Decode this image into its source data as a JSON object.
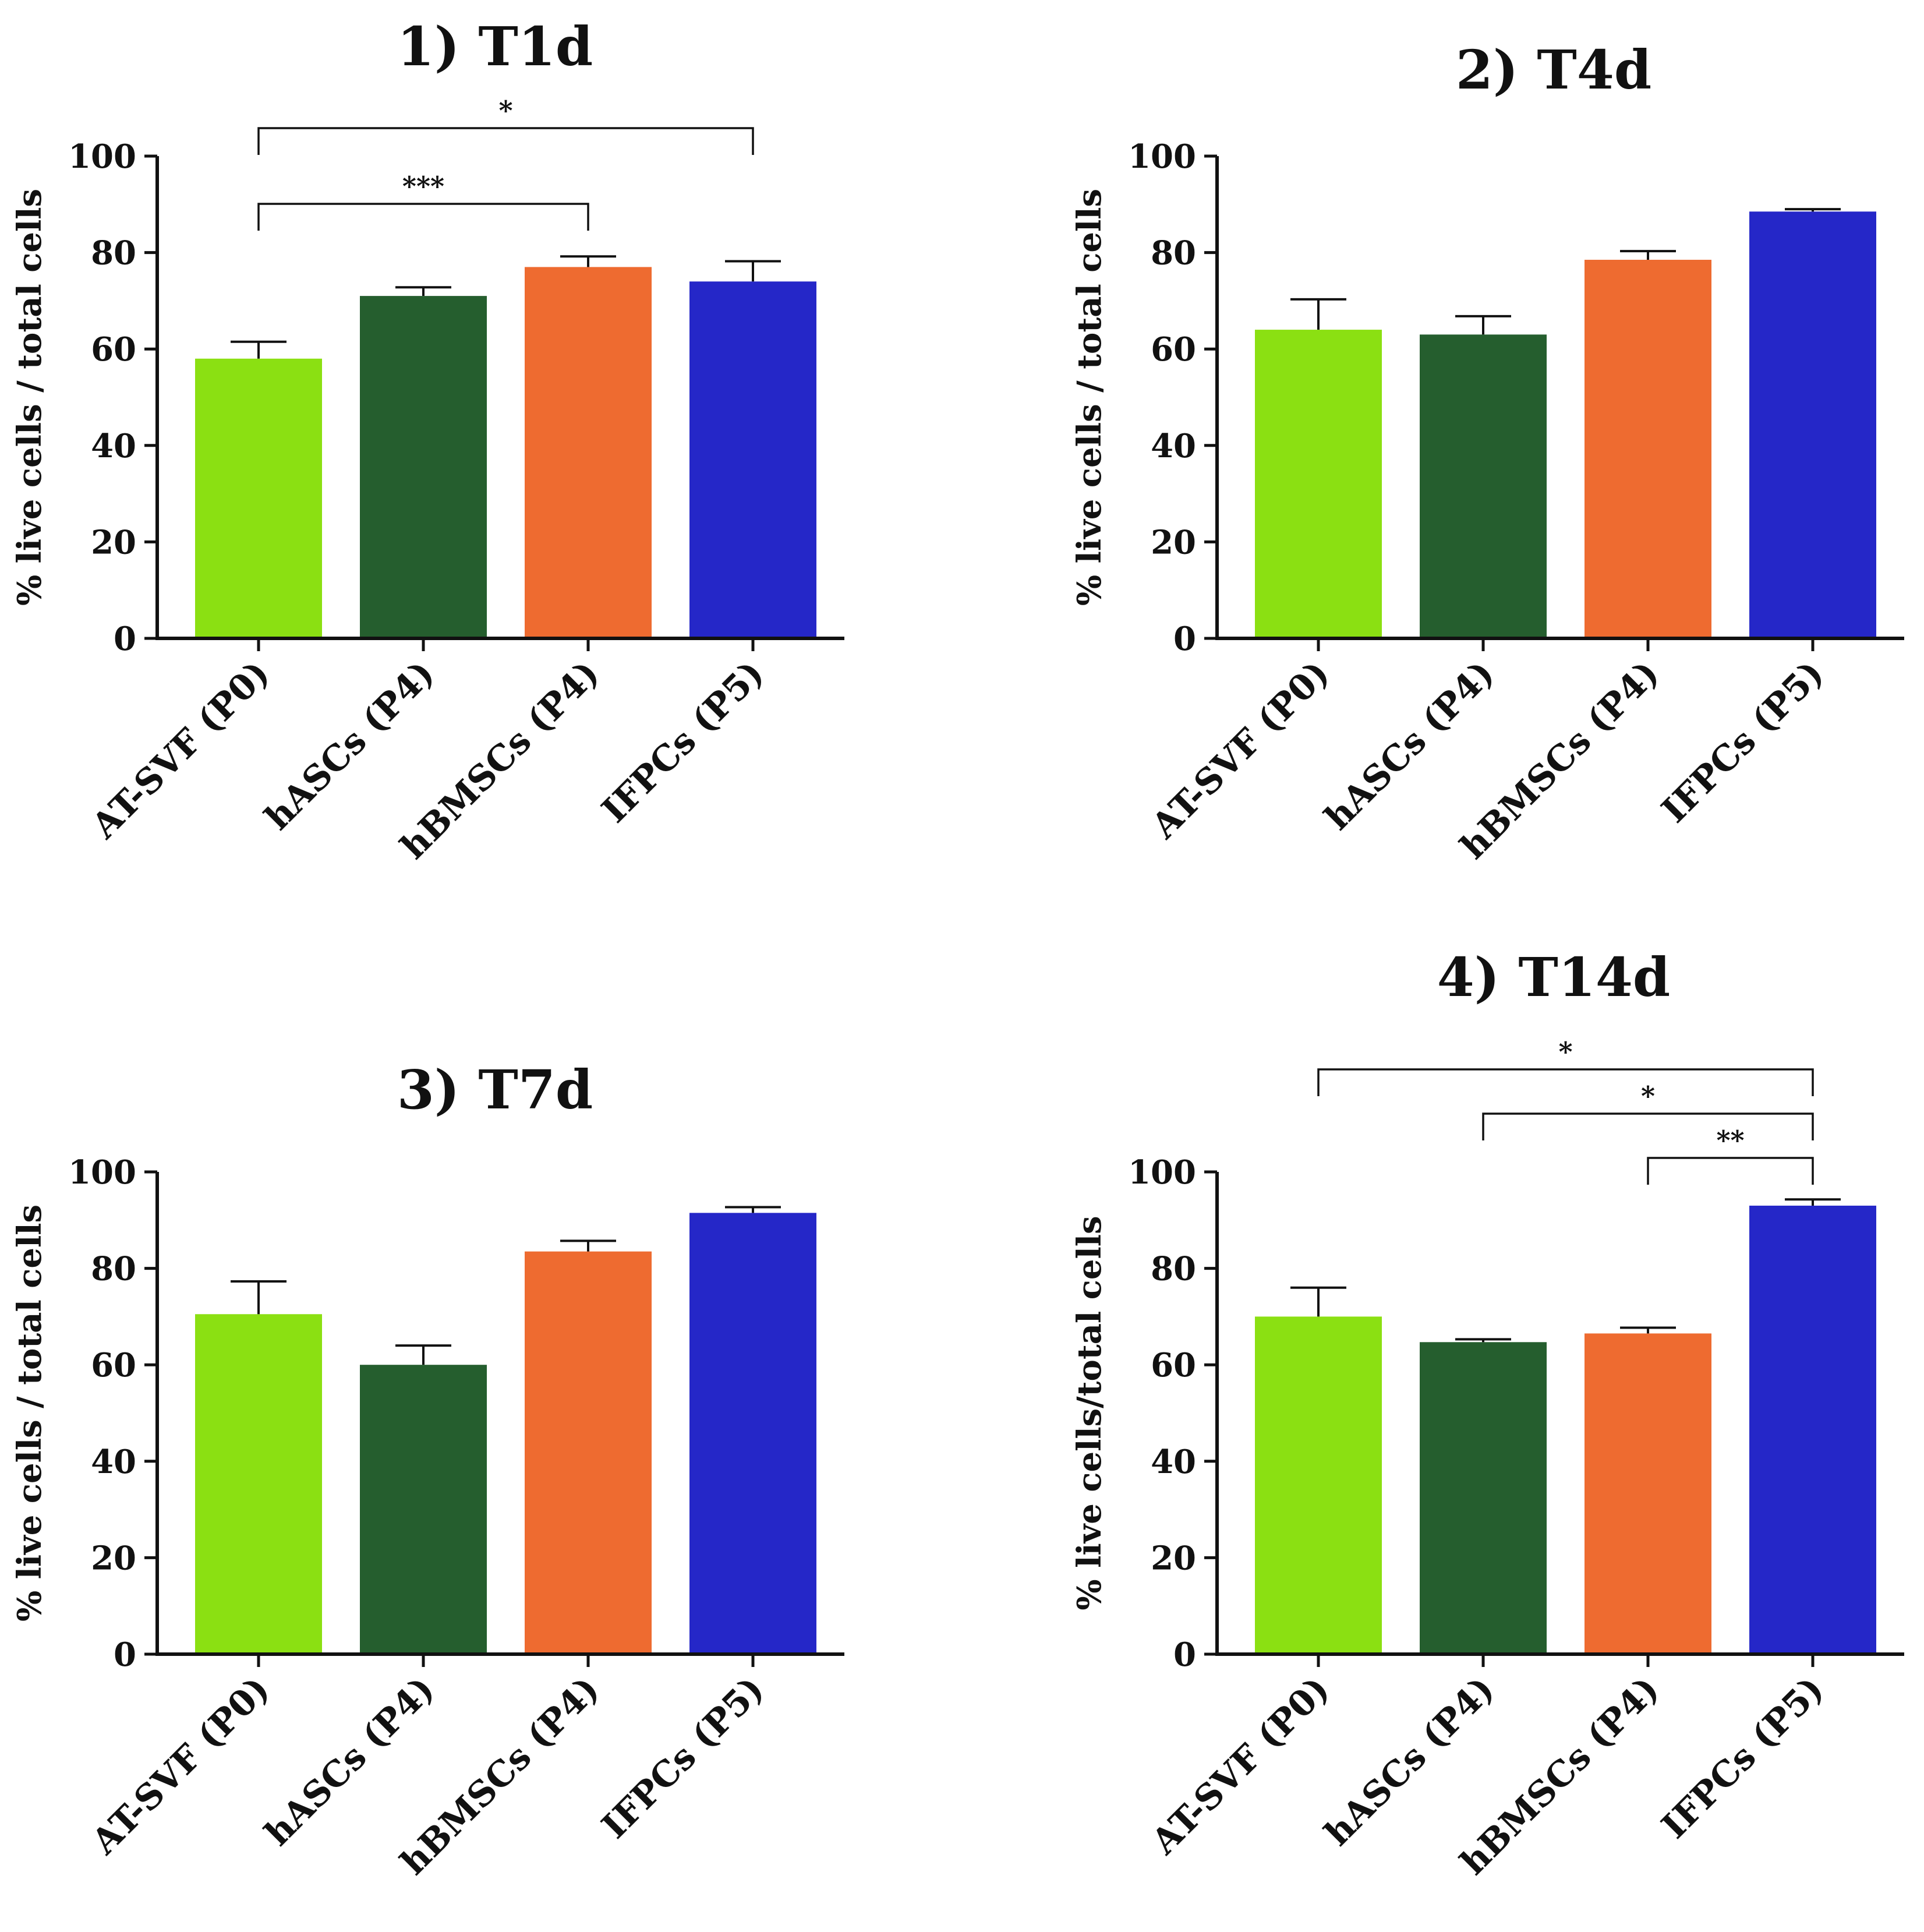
{
  "colors": {
    "AT-SVF (P0)": "#8be012",
    "hASCs (P4)": "#255e2e",
    "hBMSCs (P4)": "#ee6b30",
    "IFPCs (P5)": "#2527c8"
  },
  "chart_data": [
    {
      "type": "bar",
      "title": "1) T1d",
      "ylabel": "% live cells / total cells",
      "ylim": [
        0,
        100
      ],
      "yticks": [
        0,
        20,
        40,
        60,
        80,
        100
      ],
      "categories": [
        "AT-SVF (P0)",
        "hASCs (P4)",
        "hBMSCs (P4)",
        "IFPCs (P5)"
      ],
      "values": [
        58,
        71,
        77,
        74
      ],
      "errors": [
        3.5,
        1.8,
        2.2,
        4.2
      ],
      "significance": [
        {
          "from": 0,
          "to": 2,
          "label": "***"
        },
        {
          "from": 0,
          "to": 3,
          "label": "*"
        }
      ]
    },
    {
      "type": "bar",
      "title": "2) T4d",
      "ylabel": "% live cells / total cells",
      "ylim": [
        0,
        100
      ],
      "yticks": [
        0,
        20,
        40,
        60,
        80,
        100
      ],
      "categories": [
        "AT-SVF (P0)",
        "hASCs (P4)",
        "hBMSCs (P4)",
        "IFPCs (P5)"
      ],
      "values": [
        64,
        63,
        78.5,
        88.5
      ],
      "errors": [
        6.3,
        3.8,
        1.8,
        0.5
      ],
      "significance": []
    },
    {
      "type": "bar",
      "title": "3) T7d",
      "ylabel": "% live cells / total cells",
      "ylim": [
        0,
        100
      ],
      "yticks": [
        0,
        20,
        40,
        60,
        80,
        100
      ],
      "categories": [
        "AT-SVF (P0)",
        "hASCs (P4)",
        "hBMSCs (P4)",
        "IFPCs (P5)"
      ],
      "values": [
        70.5,
        60,
        83.5,
        91.5
      ],
      "errors": [
        6.8,
        4.0,
        2.2,
        1.2
      ],
      "significance": []
    },
    {
      "type": "bar",
      "title": "4) T14d",
      "ylabel": "% live cells/total cells",
      "ylim": [
        0,
        100
      ],
      "yticks": [
        0,
        20,
        40,
        60,
        80,
        100
      ],
      "categories": [
        "AT-SVF (P0)",
        "hASCs (P4)",
        "hBMSCs (P4)",
        "IFPCs (P5)"
      ],
      "values": [
        70,
        64.7,
        66.5,
        93
      ],
      "errors": [
        6.0,
        0.6,
        1.2,
        1.3
      ],
      "significance": [
        {
          "from": 2,
          "to": 3,
          "label": "**"
        },
        {
          "from": 1,
          "to": 3,
          "label": "*"
        },
        {
          "from": 0,
          "to": 3,
          "label": "*"
        }
      ]
    }
  ]
}
